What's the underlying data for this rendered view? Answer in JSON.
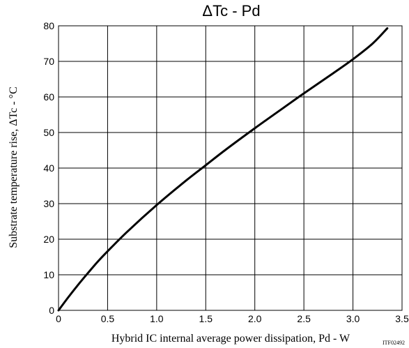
{
  "chart_data": {
    "type": "line",
    "title": "ΔTc - Pd",
    "xlabel": "Hybrid IC internal average power dissipation, Pd  - W",
    "ylabel": "Substrate temperature rise, ΔTc - °C",
    "xlim": [
      0,
      3.5
    ],
    "ylim": [
      0,
      80
    ],
    "x_ticks": [
      0,
      0.5,
      1.0,
      1.5,
      2.0,
      2.5,
      3.0,
      3.5
    ],
    "x_tick_labels": [
      "0",
      "0.5",
      "1.0",
      "1.5",
      "2.0",
      "2.5",
      "3.0",
      "3.5"
    ],
    "y_ticks": [
      0,
      10,
      20,
      30,
      40,
      50,
      60,
      70,
      80
    ],
    "y_tick_labels": [
      "0",
      "10",
      "20",
      "30",
      "40",
      "50",
      "60",
      "70",
      "80"
    ],
    "grid": true,
    "legend": "none",
    "series": [
      {
        "x": [
          0,
          0.1,
          0.2,
          0.3,
          0.4,
          0.5,
          0.7,
          1.0,
          1.3,
          1.5,
          1.7,
          2.0,
          2.3,
          2.5,
          2.8,
          3.0,
          3.2,
          3.35
        ],
        "values": [
          0,
          3.7,
          7.2,
          10.5,
          13.7,
          16.6,
          22.1,
          29.6,
          36.5,
          40.8,
          45.1,
          51.2,
          57.1,
          61.0,
          66.7,
          70.6,
          75.0,
          79.3
        ]
      }
    ],
    "line_color": "#000000"
  },
  "figure_code": "ITF02492"
}
